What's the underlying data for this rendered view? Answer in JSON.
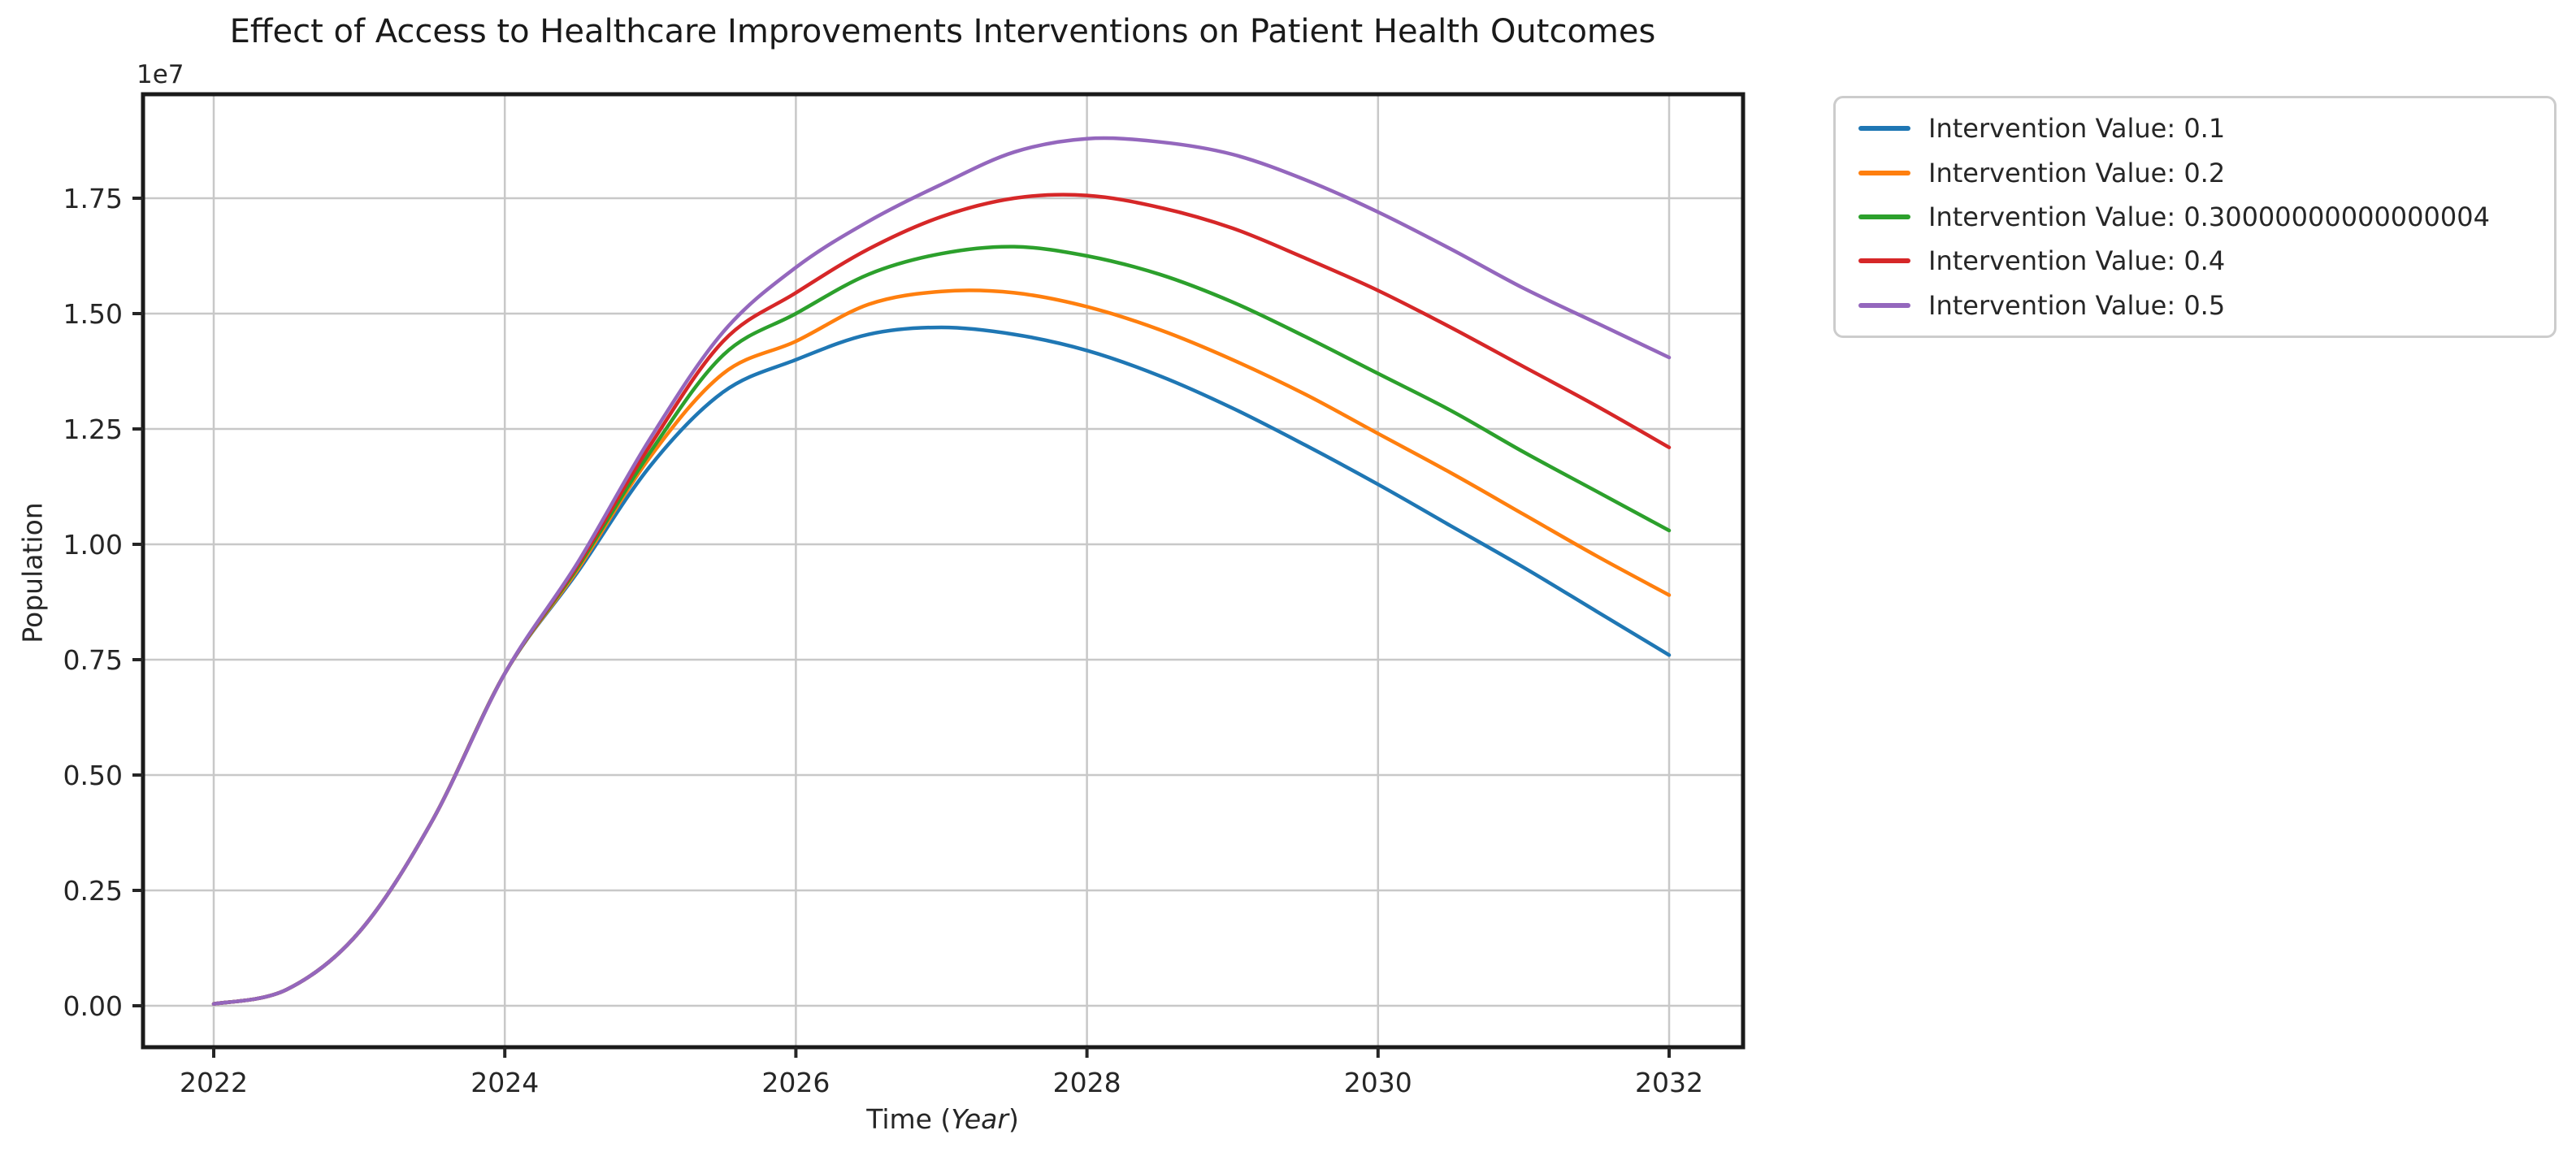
{
  "chart": {
    "title": "Effect of Access to Healthcare Improvements Interventions on Patient Health Outcomes",
    "ylabel": "Population",
    "xlabel_prefix": "Time (",
    "xlabel_italic": "Year",
    "xlabel_suffix": ")",
    "y_offset_text": "1e7"
  },
  "chart_data": {
    "type": "line",
    "title": "Effect of Access to Healthcare Improvements Interventions on Patient Health Outcomes",
    "xlabel": "Time (Year)",
    "ylabel": "Population",
    "y_offset_text": "1e7",
    "grid": true,
    "legend_position": "outside-upper-right",
    "xlim": [
      2021.5,
      2032.5
    ],
    "ylim": [
      -840000,
      19700000
    ],
    "xticks": [
      2022,
      2024,
      2026,
      2028,
      2030,
      2032
    ],
    "xtick_labels": [
      "2022",
      "2024",
      "2026",
      "2028",
      "2030",
      "2032"
    ],
    "yticks": [
      0,
      2500000,
      5000000,
      7500000,
      10000000,
      12500000,
      15000000,
      17500000
    ],
    "ytick_labels": [
      "0.00",
      "0.25",
      "0.50",
      "0.75",
      "1.00",
      "1.25",
      "1.50",
      "1.75"
    ],
    "x": [
      2022,
      2022.5,
      2023,
      2023.5,
      2024,
      2024.5,
      2025,
      2025.5,
      2026,
      2026.5,
      2027,
      2027.5,
      2028,
      2028.5,
      2029,
      2029.5,
      2030,
      2030.5,
      2031,
      2031.5,
      2032
    ],
    "series": [
      {
        "name": "Intervention Value: 0.1",
        "color": "#1f77b4",
        "values": [
          40000,
          350000,
          1600000,
          4000000,
          7200000,
          9400000,
          11700000,
          13300000,
          14000000,
          14550000,
          14700000,
          14550000,
          14200000,
          13650000,
          12950000,
          12150000,
          11300000,
          10400000,
          9500000,
          8550000,
          7600000
        ]
      },
      {
        "name": "Intervention Value: 0.2",
        "color": "#ff7f0e",
        "values": [
          40000,
          350000,
          1600000,
          4000000,
          7200000,
          9450000,
          11900000,
          13700000,
          14400000,
          15200000,
          15480000,
          15450000,
          15150000,
          14650000,
          14000000,
          13250000,
          12400000,
          11550000,
          10650000,
          9750000,
          8900000
        ]
      },
      {
        "name": "Intervention Value: 0.30000000000000004",
        "color": "#2ca02c",
        "values": [
          40000,
          350000,
          1600000,
          4000000,
          7200000,
          9500000,
          12000000,
          14100000,
          15000000,
          15850000,
          16300000,
          16450000,
          16250000,
          15850000,
          15250000,
          14500000,
          13700000,
          12900000,
          12000000,
          11150000,
          10300000
        ]
      },
      {
        "name": "Intervention Value: 0.4",
        "color": "#d62728",
        "values": [
          40000,
          350000,
          1600000,
          4000000,
          7200000,
          9550000,
          12150000,
          14400000,
          15450000,
          16400000,
          17100000,
          17500000,
          17560000,
          17300000,
          16850000,
          16200000,
          15500000,
          14700000,
          13850000,
          13000000,
          12100000
        ]
      },
      {
        "name": "Intervention Value: 0.5",
        "color": "#9467bd",
        "values": [
          40000,
          350000,
          1600000,
          4000000,
          7200000,
          9600000,
          12300000,
          14600000,
          16000000,
          17000000,
          17800000,
          18500000,
          18790000,
          18720000,
          18450000,
          17900000,
          17200000,
          16400000,
          15550000,
          14800000,
          14050000
        ]
      }
    ]
  },
  "style": {
    "grid_color": "#c8c8c8",
    "spine_color": "#1a1a1a",
    "tick_color": "#262626",
    "text_color": "#262626"
  }
}
